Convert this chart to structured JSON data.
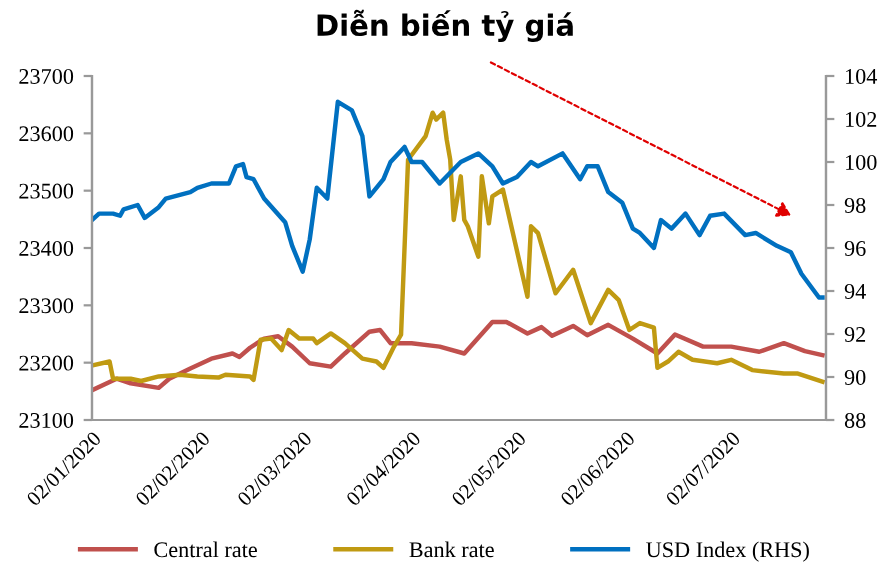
{
  "chart_data": {
    "type": "line",
    "title": "Diễn biến tỷ giá",
    "xlim": [
      "2020-01-02",
      "2020-07-29"
    ],
    "xticks": [
      {
        "value": "2020-01-02",
        "label": "02/01/2020"
      },
      {
        "value": "2020-02-02",
        "label": "02/02/2020"
      },
      {
        "value": "2020-03-02",
        "label": "02/03/2020"
      },
      {
        "value": "2020-04-02",
        "label": "02/04/2020"
      },
      {
        "value": "2020-05-02",
        "label": "02/05/2020"
      },
      {
        "value": "2020-06-02",
        "label": "02/06/2020"
      },
      {
        "value": "2020-07-02",
        "label": "02/07/2020"
      }
    ],
    "ylim": [
      23100,
      23700
    ],
    "yticks": [
      23100,
      23200,
      23300,
      23400,
      23500,
      23600,
      23700
    ],
    "y2lim": [
      88,
      104
    ],
    "y2ticks": [
      88,
      90,
      92,
      94,
      96,
      98,
      100,
      102,
      104
    ],
    "legend": "bottom",
    "grid": false,
    "marker": "none",
    "line_style": "solid",
    "series": [
      {
        "name": "Central rate",
        "color": "#c0504d",
        "x": [
          "2020-01-02",
          "2020-01-09",
          "2020-01-13",
          "2020-01-21",
          "2020-01-24",
          "2020-01-30",
          "2020-02-05",
          "2020-02-11",
          "2020-02-13",
          "2020-02-16",
          "2020-02-20",
          "2020-02-24",
          "2020-02-28",
          "2020-03-04",
          "2020-03-10",
          "2020-03-14",
          "2020-03-21",
          "2020-03-24",
          "2020-03-27",
          "2020-04-02",
          "2020-04-10",
          "2020-04-17",
          "2020-04-25",
          "2020-04-29",
          "2020-05-05",
          "2020-05-09",
          "2020-05-12",
          "2020-05-18",
          "2020-05-22",
          "2020-05-28",
          "2020-06-04",
          "2020-06-11",
          "2020-06-16",
          "2020-06-24",
          "2020-07-02",
          "2020-07-10",
          "2020-07-17",
          "2020-07-23",
          "2020-07-28"
        ],
        "values": [
          23152,
          23172,
          23164,
          23156,
          23172,
          23190,
          23207,
          23216,
          23210,
          23226,
          23242,
          23246,
          23228,
          23199,
          23193,
          23216,
          23254,
          23257,
          23234,
          23234,
          23228,
          23216,
          23271,
          23271,
          23251,
          23262,
          23247,
          23264,
          23248,
          23266,
          23242,
          23216,
          23249,
          23228,
          23228,
          23219,
          23234,
          23220,
          23213
        ]
      },
      {
        "name": "Bank rate",
        "color": "#c09a12",
        "x": [
          "2020-01-02",
          "2020-01-07",
          "2020-01-08",
          "2020-01-13",
          "2020-01-16",
          "2020-01-21",
          "2020-01-27",
          "2020-02-01",
          "2020-02-07",
          "2020-02-09",
          "2020-02-16",
          "2020-02-17",
          "2020-02-19",
          "2020-02-22",
          "2020-02-25",
          "2020-02-27",
          "2020-03-01",
          "2020-03-05",
          "2020-03-06",
          "2020-03-10",
          "2020-03-14",
          "2020-03-19",
          "2020-03-23",
          "2020-03-25",
          "2020-03-28",
          "2020-03-30",
          "2020-04-01",
          "2020-04-06",
          "2020-04-08",
          "2020-04-09",
          "2020-04-11",
          "2020-04-12",
          "2020-04-13",
          "2020-04-14",
          "2020-04-16",
          "2020-04-17",
          "2020-04-18",
          "2020-04-21",
          "2020-04-22",
          "2020-04-24",
          "2020-04-25",
          "2020-04-28",
          "2020-05-05",
          "2020-05-06",
          "2020-05-08",
          "2020-05-13",
          "2020-05-18",
          "2020-05-23",
          "2020-05-28",
          "2020-05-31",
          "2020-06-03",
          "2020-06-06",
          "2020-06-10",
          "2020-06-11",
          "2020-06-14",
          "2020-06-17",
          "2020-06-21",
          "2020-06-28",
          "2020-07-02",
          "2020-07-08",
          "2020-07-17",
          "2020-07-21",
          "2020-07-28"
        ],
        "values": [
          23195,
          23202,
          23172,
          23172,
          23168,
          23176,
          23179,
          23176,
          23174,
          23179,
          23176,
          23170,
          23240,
          23242,
          23222,
          23257,
          23242,
          23242,
          23234,
          23251,
          23234,
          23207,
          23202,
          23191,
          23228,
          23249,
          23554,
          23595,
          23636,
          23624,
          23636,
          23589,
          23554,
          23449,
          23525,
          23449,
          23438,
          23385,
          23525,
          23443,
          23490,
          23502,
          23315,
          23438,
          23426,
          23321,
          23362,
          23269,
          23327,
          23309,
          23257,
          23269,
          23261,
          23191,
          23202,
          23219,
          23205,
          23199,
          23205,
          23187,
          23181,
          23181,
          23167
        ]
      },
      {
        "name": "USD Index (RHS)",
        "color": "#0070c0",
        "axis": "y2",
        "x": [
          "2020-01-02",
          "2020-01-04",
          "2020-01-08",
          "2020-01-10",
          "2020-01-11",
          "2020-01-15",
          "2020-01-17",
          "2020-01-21",
          "2020-01-23",
          "2020-01-30",
          "2020-02-01",
          "2020-02-05",
          "2020-02-10",
          "2020-02-12",
          "2020-02-14",
          "2020-02-15",
          "2020-02-17",
          "2020-02-20",
          "2020-02-26",
          "2020-02-28",
          "2020-03-02",
          "2020-03-04",
          "2020-03-06",
          "2020-03-09",
          "2020-03-12",
          "2020-03-16",
          "2020-03-19",
          "2020-03-21",
          "2020-03-22",
          "2020-03-25",
          "2020-03-27",
          "2020-03-31",
          "2020-04-02",
          "2020-04-05",
          "2020-04-10",
          "2020-04-16",
          "2020-04-21",
          "2020-04-25",
          "2020-04-28",
          "2020-05-02",
          "2020-05-06",
          "2020-05-08",
          "2020-05-15",
          "2020-05-20",
          "2020-05-22",
          "2020-05-25",
          "2020-05-28",
          "2020-06-01",
          "2020-06-04",
          "2020-06-06",
          "2020-06-10",
          "2020-06-12",
          "2020-06-15",
          "2020-06-19",
          "2020-06-23",
          "2020-06-26",
          "2020-06-30",
          "2020-07-06",
          "2020-07-09",
          "2020-07-15",
          "2020-07-19",
          "2020-07-22",
          "2020-07-27",
          "2020-07-28"
        ],
        "values": [
          97.3,
          97.6,
          97.6,
          97.5,
          97.8,
          98.0,
          97.4,
          97.9,
          98.3,
          98.6,
          98.8,
          99.0,
          99.0,
          99.8,
          99.9,
          99.3,
          99.2,
          98.3,
          97.2,
          96.1,
          94.9,
          96.4,
          98.8,
          98.3,
          102.8,
          102.4,
          101.2,
          98.4,
          98.6,
          99.2,
          100.0,
          100.7,
          100.0,
          100.0,
          99.0,
          100.0,
          100.4,
          99.8,
          99.0,
          99.3,
          100.0,
          99.8,
          100.4,
          99.2,
          99.8,
          99.8,
          98.6,
          98.1,
          96.9,
          96.7,
          96.0,
          97.3,
          96.9,
          97.6,
          96.6,
          97.5,
          97.6,
          96.6,
          96.7,
          96.1,
          95.8,
          94.8,
          93.7,
          93.7
        ]
      }
    ]
  }
}
